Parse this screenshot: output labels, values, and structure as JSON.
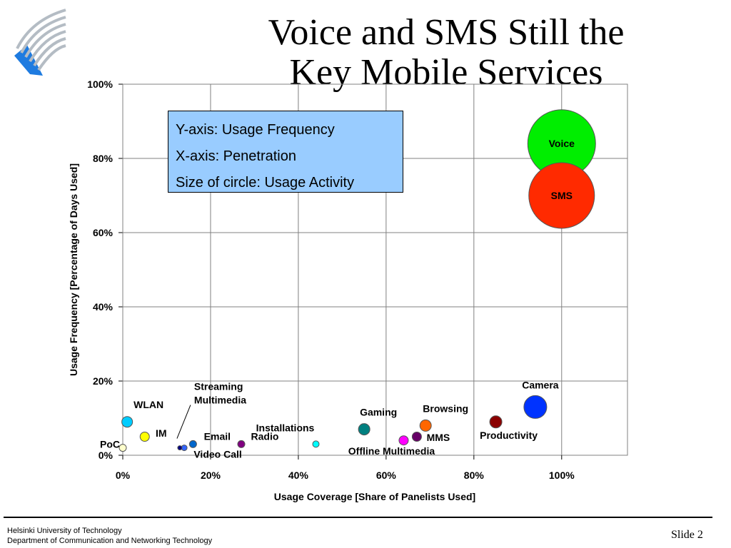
{
  "slide": {
    "title_line1": "Voice and SMS Still the",
    "title_line2": "Key Mobile Services",
    "legend_lines": [
      "Y-axis: Usage Frequency",
      "X-axis: Penetration",
      "Size of circle: Usage Activity"
    ],
    "footer_line1": "Helsinki University of Technology",
    "footer_line2": "Department of Communication and Networking Technology",
    "slide_label": "Slide 2"
  },
  "colors": {
    "legend_box": "#99ccff",
    "logo_blue": "#1e7be0",
    "logo_gray": "#b4bcc4",
    "gridline": "#808080"
  },
  "chart_data": {
    "type": "scatter",
    "title": "",
    "xlabel": "Usage Coverage [Share of Panelists Used]",
    "ylabel": "Usage Frequency [Percentage of Days Used]",
    "xlim": [
      0,
      115
    ],
    "ylim": [
      0,
      100
    ],
    "xticks": [
      0,
      20,
      40,
      60,
      80,
      100
    ],
    "yticks": [
      0,
      20,
      40,
      60,
      80,
      100
    ],
    "xtick_labels": [
      "0%",
      "20%",
      "40%",
      "60%",
      "80%",
      "100%"
    ],
    "ytick_labels": [
      "0%",
      "20%",
      "40%",
      "60%",
      "80%",
      "100%"
    ],
    "grid": true,
    "bubble_size_meaning": "Usage Activity",
    "points": [
      {
        "label": "Voice",
        "x": 100,
        "y": 84,
        "size": 95,
        "color": "#00ee00"
      },
      {
        "label": "SMS",
        "x": 100,
        "y": 70,
        "size": 92,
        "color": "#ff2a00"
      },
      {
        "label": "Camera",
        "x": 94,
        "y": 13,
        "size": 32,
        "color": "#0033ff"
      },
      {
        "label": "Productivity",
        "x": 85,
        "y": 9,
        "size": 17,
        "color": "#8b0000"
      },
      {
        "label": "Browsing",
        "x": 69,
        "y": 8,
        "size": 16,
        "color": "#ff6600"
      },
      {
        "label": "MMS",
        "x": 67,
        "y": 5,
        "size": 13,
        "color": "#660066"
      },
      {
        "label": "Offline Multimedia",
        "x": 64,
        "y": 4,
        "size": 13,
        "color": "#ff00ff"
      },
      {
        "label": "Gaming",
        "x": 55,
        "y": 7,
        "size": 16,
        "color": "#008080"
      },
      {
        "label": "Installations",
        "x": 44,
        "y": 3,
        "size": 9,
        "color": "#00ffff"
      },
      {
        "label": "Radio",
        "x": 27,
        "y": 3,
        "size": 10,
        "color": "#800080"
      },
      {
        "label": "Email",
        "x": 16,
        "y": 3,
        "size": 10,
        "color": "#0066cc"
      },
      {
        "label": "Video Call",
        "x": 14,
        "y": 2,
        "size": 8,
        "color": "#3366ff"
      },
      {
        "label": "Streaming Multimedia",
        "x": 13,
        "y": 2,
        "size": 6,
        "color": "#000080"
      },
      {
        "label": "IM",
        "x": 5,
        "y": 5,
        "size": 13,
        "color": "#ffff00"
      },
      {
        "label": "WLAN",
        "x": 1,
        "y": 9,
        "size": 15,
        "color": "#00ccff"
      },
      {
        "label": "PoC",
        "x": 0,
        "y": 2,
        "size": 10,
        "color": "#ffffcc"
      }
    ]
  }
}
